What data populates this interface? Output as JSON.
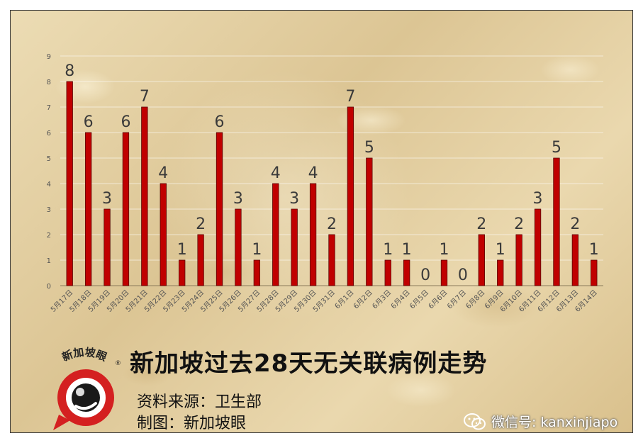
{
  "chart_data": {
    "type": "bar",
    "categories": [
      "5月17日",
      "5月18日",
      "5月19日",
      "5月20日",
      "5月21日",
      "5月22日",
      "5月23日",
      "5月24日",
      "5月25日",
      "5月26日",
      "5月27日",
      "5月28日",
      "5月29日",
      "5月30日",
      "5月31日",
      "6月1日",
      "6月2日",
      "6月3日",
      "6月4日",
      "6月5日",
      "6月6日",
      "6月7日",
      "6月8日",
      "6月9日",
      "6月10日",
      "6月11日",
      "6月12日",
      "6月13日",
      "6月14日"
    ],
    "values": [
      8,
      6,
      3,
      6,
      7,
      4,
      1,
      2,
      6,
      3,
      1,
      4,
      3,
      4,
      2,
      7,
      5,
      1,
      1,
      0,
      1,
      0,
      2,
      1,
      2,
      3,
      5,
      2,
      1
    ],
    "ylim": [
      0,
      9
    ],
    "yticks": [
      0,
      1,
      2,
      3,
      4,
      5,
      6,
      7,
      8,
      9
    ],
    "grid": true,
    "bar_color": "#c00000"
  },
  "title": "新加坡过去28天无关联病例走势",
  "source": "资料来源：卫生部",
  "maker": "制图：新加坡眼",
  "logo_text": "新加坡眼",
  "wechat": "微信号: kanxinjiapo"
}
